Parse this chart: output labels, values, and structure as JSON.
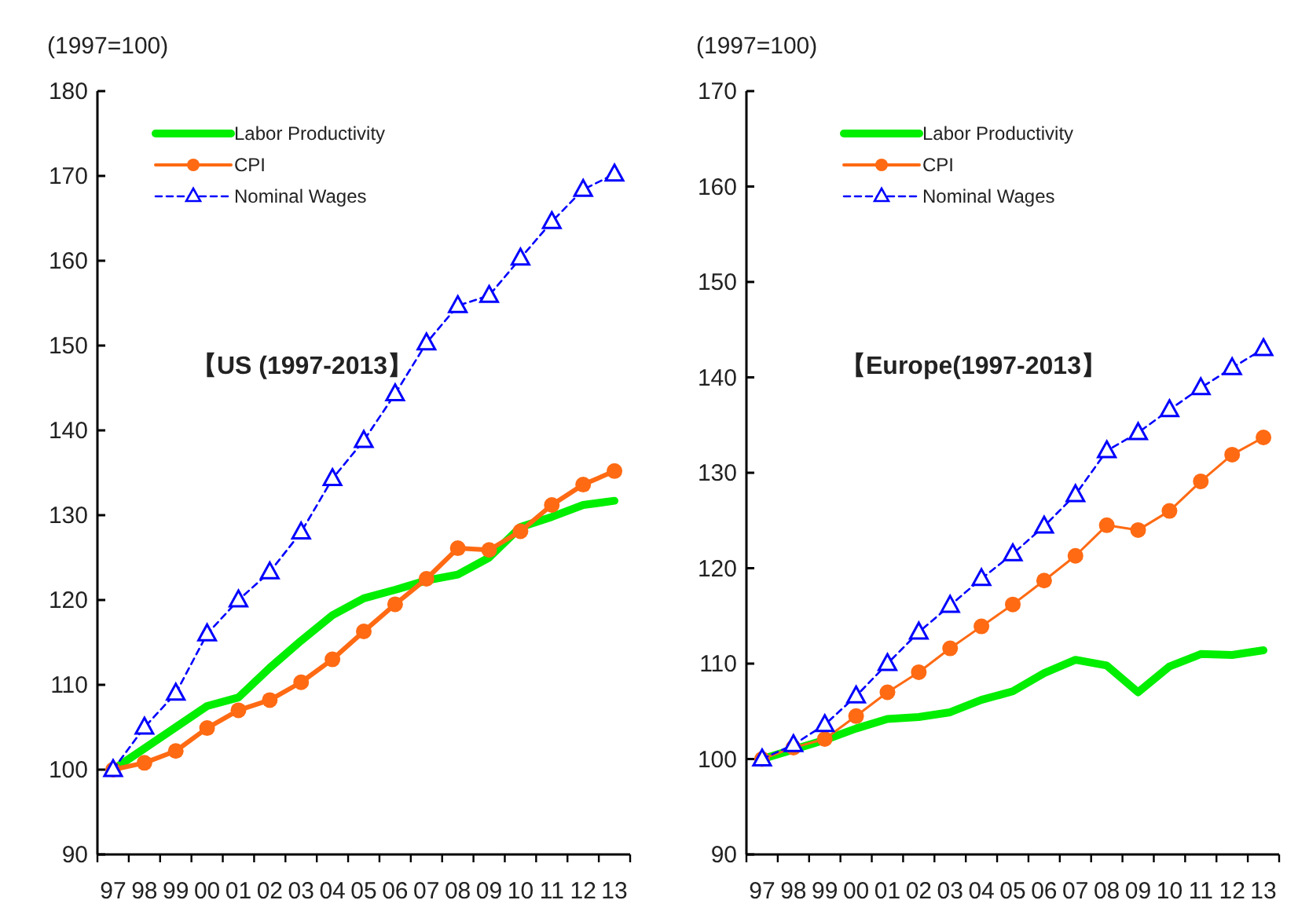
{
  "chart_data": [
    {
      "type": "line",
      "title": "【US (1997-2013】",
      "ylabel": "(1997=100)",
      "categories": [
        "97",
        "98",
        "99",
        "00",
        "01",
        "02",
        "03",
        "04",
        "05",
        "06",
        "07",
        "08",
        "09",
        "10",
        "11",
        "12",
        "13"
      ],
      "ylim": [
        90,
        180
      ],
      "yticks": [
        90,
        100,
        110,
        120,
        130,
        140,
        150,
        160,
        170,
        180
      ],
      "grid": false,
      "legend": "top left",
      "series": [
        {
          "name": "Labor Productivity",
          "color": "#00ee00",
          "marker": "none",
          "line_style": "solid",
          "values": [
            100,
            102.5,
            105,
            107.5,
            108.5,
            112,
            115.2,
            118.2,
            120.2,
            121.2,
            122.3,
            123,
            125,
            128.6,
            129.8,
            131.2,
            131.7
          ]
        },
        {
          "name": "CPI",
          "color": "#ff6a13",
          "marker": "circle",
          "line_style": "solid",
          "values": [
            100,
            100.8,
            102.2,
            104.9,
            107,
            108.2,
            110.3,
            113,
            116.3,
            119.5,
            122.5,
            126.1,
            125.9,
            128.1,
            131.2,
            133.6,
            135.2
          ]
        },
        {
          "name": "Nominal Wages",
          "color": "#0000ff",
          "marker": "triangle",
          "line_style": "dashed",
          "values": [
            100,
            105,
            109,
            116,
            120,
            123.3,
            128,
            134.3,
            138.8,
            144.3,
            150.3,
            154.7,
            155.9,
            160.3,
            164.6,
            168.4,
            170.2
          ]
        }
      ]
    },
    {
      "type": "line",
      "title": "【Europe(1997-2013】",
      "ylabel": "(1997=100)",
      "categories": [
        "97",
        "98",
        "99",
        "00",
        "01",
        "02",
        "03",
        "04",
        "05",
        "06",
        "07",
        "08",
        "09",
        "10",
        "11",
        "12",
        "13"
      ],
      "ylim": [
        90,
        170
      ],
      "yticks": [
        90,
        100,
        110,
        120,
        130,
        140,
        150,
        160,
        170
      ],
      "grid": false,
      "legend": "top left",
      "series": [
        {
          "name": "Labor Productivity",
          "color": "#00ee00",
          "marker": "none",
          "line_style": "solid",
          "values": [
            100,
            101,
            102,
            103.2,
            104.2,
            104.4,
            104.9,
            106.2,
            107.1,
            109,
            110.4,
            109.8,
            107,
            109.7,
            111,
            110.9,
            111.4
          ]
        },
        {
          "name": "CPI",
          "color": "#ff6a13",
          "marker": "circle",
          "line_style": "solid",
          "values": [
            100,
            101.2,
            102.1,
            104.5,
            107,
            109.1,
            111.6,
            113.9,
            116.2,
            118.7,
            121.3,
            124.5,
            124,
            126,
            129.1,
            131.9,
            133.7
          ]
        },
        {
          "name": "Nominal Wages",
          "color": "#0000ff",
          "marker": "triangle",
          "line_style": "dashed",
          "values": [
            100,
            101.5,
            103.6,
            106.6,
            110,
            113.3,
            116.1,
            118.9,
            121.5,
            124.4,
            127.7,
            132.3,
            134.2,
            136.6,
            138.9,
            141,
            143
          ]
        }
      ]
    }
  ]
}
